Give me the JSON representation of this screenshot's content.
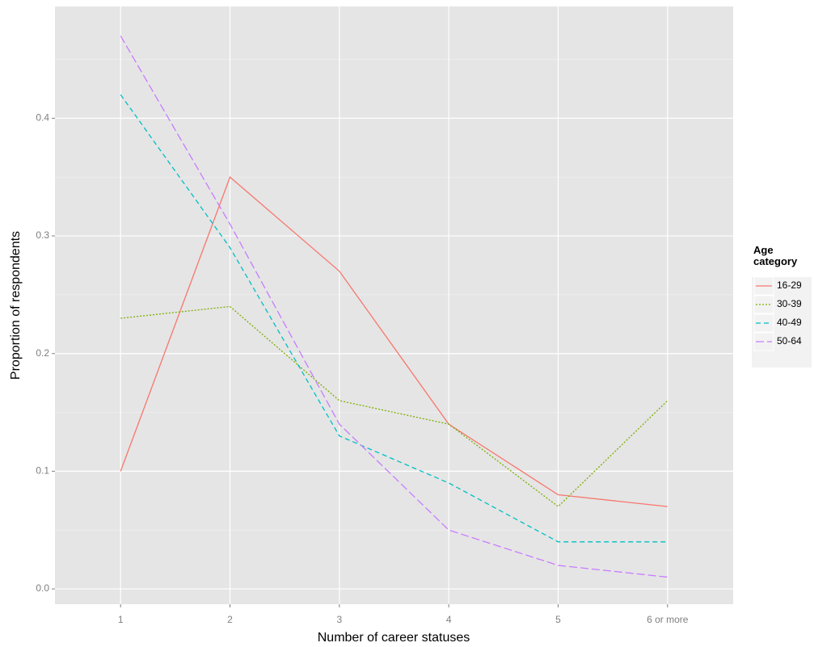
{
  "chart_data": {
    "type": "line",
    "x_label": "Number of career statuses",
    "y_label": "Proportion of respondents",
    "categories": [
      "1",
      "2",
      "3",
      "4",
      "5",
      "6 or more"
    ],
    "series": [
      {
        "name": "16-29",
        "color": "#F8766D",
        "linetype": "solid",
        "values": [
          0.1,
          0.35,
          0.27,
          0.14,
          0.08,
          0.07
        ]
      },
      {
        "name": "30-39",
        "color": "#7CAE00",
        "linetype": "dotted",
        "values": [
          0.23,
          0.24,
          0.16,
          0.14,
          0.07,
          0.16
        ]
      },
      {
        "name": "40-49",
        "color": "#00BFC4",
        "linetype": "dashed",
        "values": [
          0.42,
          0.29,
          0.13,
          0.09,
          0.04,
          0.04
        ]
      },
      {
        "name": "50-64",
        "color": "#C77CFF",
        "linetype": "longdash",
        "values": [
          0.47,
          0.31,
          0.14,
          0.05,
          0.02,
          0.01
        ]
      }
    ],
    "ylim": [
      -0.013,
      0.495
    ],
    "yticks": [
      {
        "value": 0,
        "label": "0.0"
      },
      0.1,
      0.2,
      0.3,
      0.4
    ],
    "minor_yticks": [
      0.05,
      0.15,
      0.25,
      0.35,
      0.45
    ],
    "grid": true,
    "legend_title": "Age category",
    "legend_position": "right"
  }
}
